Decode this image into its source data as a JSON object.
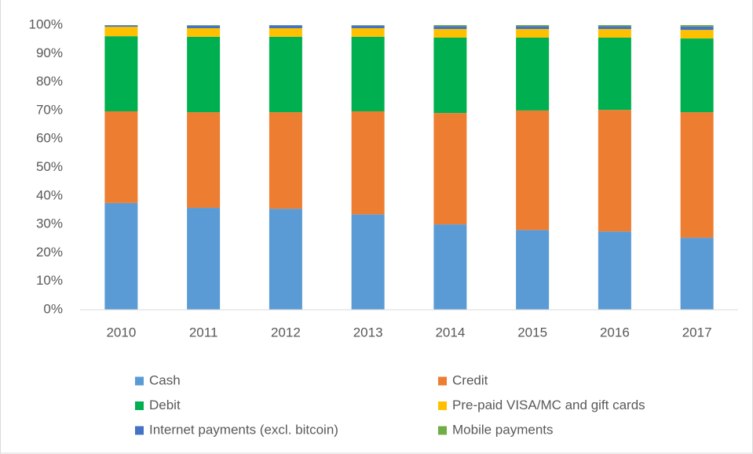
{
  "chart_data": {
    "type": "stacked_bar",
    "categories": [
      "2010",
      "2011",
      "2012",
      "2013",
      "2014",
      "2015",
      "2016",
      "2017"
    ],
    "series": [
      {
        "name": "Cash",
        "color": "#5b9bd5",
        "values": [
          37.5,
          35.8,
          35.5,
          33.5,
          30,
          28,
          27.5,
          25.3
        ]
      },
      {
        "name": "Credit",
        "color": "#ed7d31",
        "values": [
          32.2,
          33.6,
          33.9,
          36.2,
          39.1,
          42,
          42.7,
          44.1
        ]
      },
      {
        "name": "Debit",
        "color": "#00b050",
        "values": [
          26.4,
          26.5,
          26.5,
          26.2,
          26.5,
          25.6,
          25.4,
          25.9
        ]
      },
      {
        "name": "Pre-paid VISA/MC and gift cards",
        "color": "#ffc000",
        "values": [
          3.3,
          3,
          3,
          3,
          3,
          3,
          3,
          3
        ]
      },
      {
        "name": "Internet payments (excl. bitcoin)",
        "color": "#4472c4",
        "values": [
          0.5,
          0.9,
          1,
          0.9,
          1,
          1,
          1,
          1.2
        ]
      },
      {
        "name": "Mobile payments",
        "color": "#70ad47",
        "values": [
          0.1,
          0.2,
          0.1,
          0.2,
          0.4,
          0.4,
          0.4,
          0.5
        ]
      }
    ],
    "ylim": [
      0,
      100
    ],
    "yticks": [
      {
        "value": 0,
        "label": "0%"
      },
      {
        "value": 10,
        "label": "10%"
      },
      {
        "value": 20,
        "label": "20%"
      },
      {
        "value": 30,
        "label": "30%"
      },
      {
        "value": 40,
        "label": "40%"
      },
      {
        "value": 50,
        "label": "50%"
      },
      {
        "value": 60,
        "label": "60%"
      },
      {
        "value": 70,
        "label": "70%"
      },
      {
        "value": 80,
        "label": "80%"
      },
      {
        "value": 90,
        "label": "90%"
      },
      {
        "value": 100,
        "label": "100%"
      }
    ],
    "grid": false,
    "legend": "bottom"
  }
}
